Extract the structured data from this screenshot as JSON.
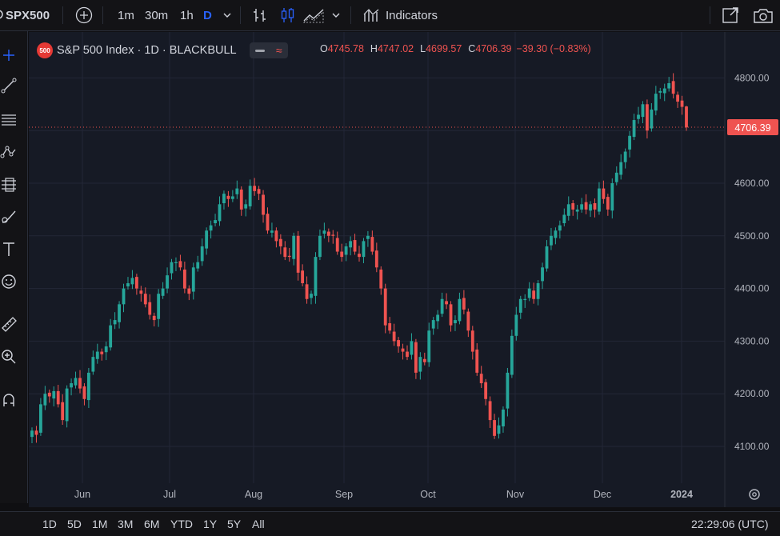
{
  "toolbar": {
    "symbol": "SPX500",
    "intervals": [
      "1m",
      "30m",
      "1h",
      "D"
    ],
    "indicators_label": "Indicators"
  },
  "legend": {
    "badge": "500",
    "title": "S&P 500 Index · 1D · BLACKBULL",
    "open_label": "O",
    "open": "4745.78",
    "high_label": "H",
    "high": "4747.02",
    "low_label": "L",
    "low": "4699.57",
    "close_label": "C",
    "close": "4706.39",
    "change": "−39.30 (−0.83%)"
  },
  "price_label": "4706.39",
  "bottom": {
    "ranges": [
      "1D",
      "5D",
      "1M",
      "3M",
      "6M",
      "YTD",
      "1Y",
      "5Y",
      "All"
    ],
    "clock": "22:29:06 (UTC)"
  },
  "colors": {
    "up": "#26a69a",
    "down": "#ef5350",
    "background": "#161a25",
    "accent": "#2962ff"
  },
  "icons": [
    "plus-circle-icon",
    "chevron-down-icon",
    "bar-style-icon",
    "candles-icon",
    "area-icon",
    "indicators-icon",
    "snapshot-share-icon",
    "camera-icon",
    "crosshair-icon",
    "trendline-icon",
    "fib-icon",
    "pattern-icon",
    "projection-icon",
    "brush-icon",
    "text-icon",
    "emoji-icon",
    "ruler-icon",
    "zoom-icon",
    "magnet-icon",
    "settings-icon"
  ],
  "chart_data": {
    "type": "candlestick",
    "symbol": "S&P 500 Index",
    "interval": "1D",
    "y_ticks": [
      4100,
      4200,
      4300,
      4400,
      4500,
      4600,
      4700,
      4800
    ],
    "ylim": [
      4060,
      4830
    ],
    "x_ticks": [
      "Jun",
      "Jul",
      "Aug",
      "Sep",
      "Oct",
      "Nov",
      "Dec",
      "2024"
    ],
    "last_price": 4706.39,
    "closes": [
      4130,
      4122,
      4180,
      4200,
      4195,
      4205,
      4180,
      4150,
      4210,
      4220,
      4230,
      4210,
      4190,
      4240,
      4270,
      4280,
      4275,
      4290,
      4330,
      4340,
      4370,
      4400,
      4410,
      4420,
      4400,
      4390,
      4370,
      4350,
      4340,
      4390,
      4400,
      4425,
      4450,
      4450,
      4440,
      4400,
      4390,
      4440,
      4450,
      4480,
      4510,
      4520,
      4530,
      4560,
      4580,
      4570,
      4575,
      4590,
      4550,
      4560,
      4595,
      4585,
      4580,
      4540,
      4510,
      4510,
      4490,
      4480,
      4460,
      4460,
      4500,
      4430,
      4410,
      4380,
      4390,
      4460,
      4500,
      4510,
      4500,
      4500,
      4470,
      4460,
      4480,
      4490,
      4470,
      4460,
      4490,
      4500,
      4470,
      4440,
      4400,
      4330,
      4320,
      4300,
      4290,
      4280,
      4270,
      4300,
      4240,
      4270,
      4260,
      4320,
      4340,
      4350,
      4380,
      4370,
      4330,
      4340,
      4380,
      4360,
      4320,
      4280,
      4240,
      4220,
      4190,
      4150,
      4120,
      4140,
      4170,
      4240,
      4310,
      4350,
      4380,
      4380,
      4400,
      4380,
      4410,
      4440,
      4480,
      4500,
      4510,
      4520,
      4540,
      4560,
      4550,
      4550,
      4560,
      4550,
      4560,
      4550,
      4590,
      4570,
      4550,
      4600,
      4620,
      4640,
      4660,
      4690,
      4720,
      4730,
      4750,
      4700,
      4740,
      4770,
      4775,
      4780,
      4790,
      4770,
      4755,
      4745,
      4706
    ]
  }
}
